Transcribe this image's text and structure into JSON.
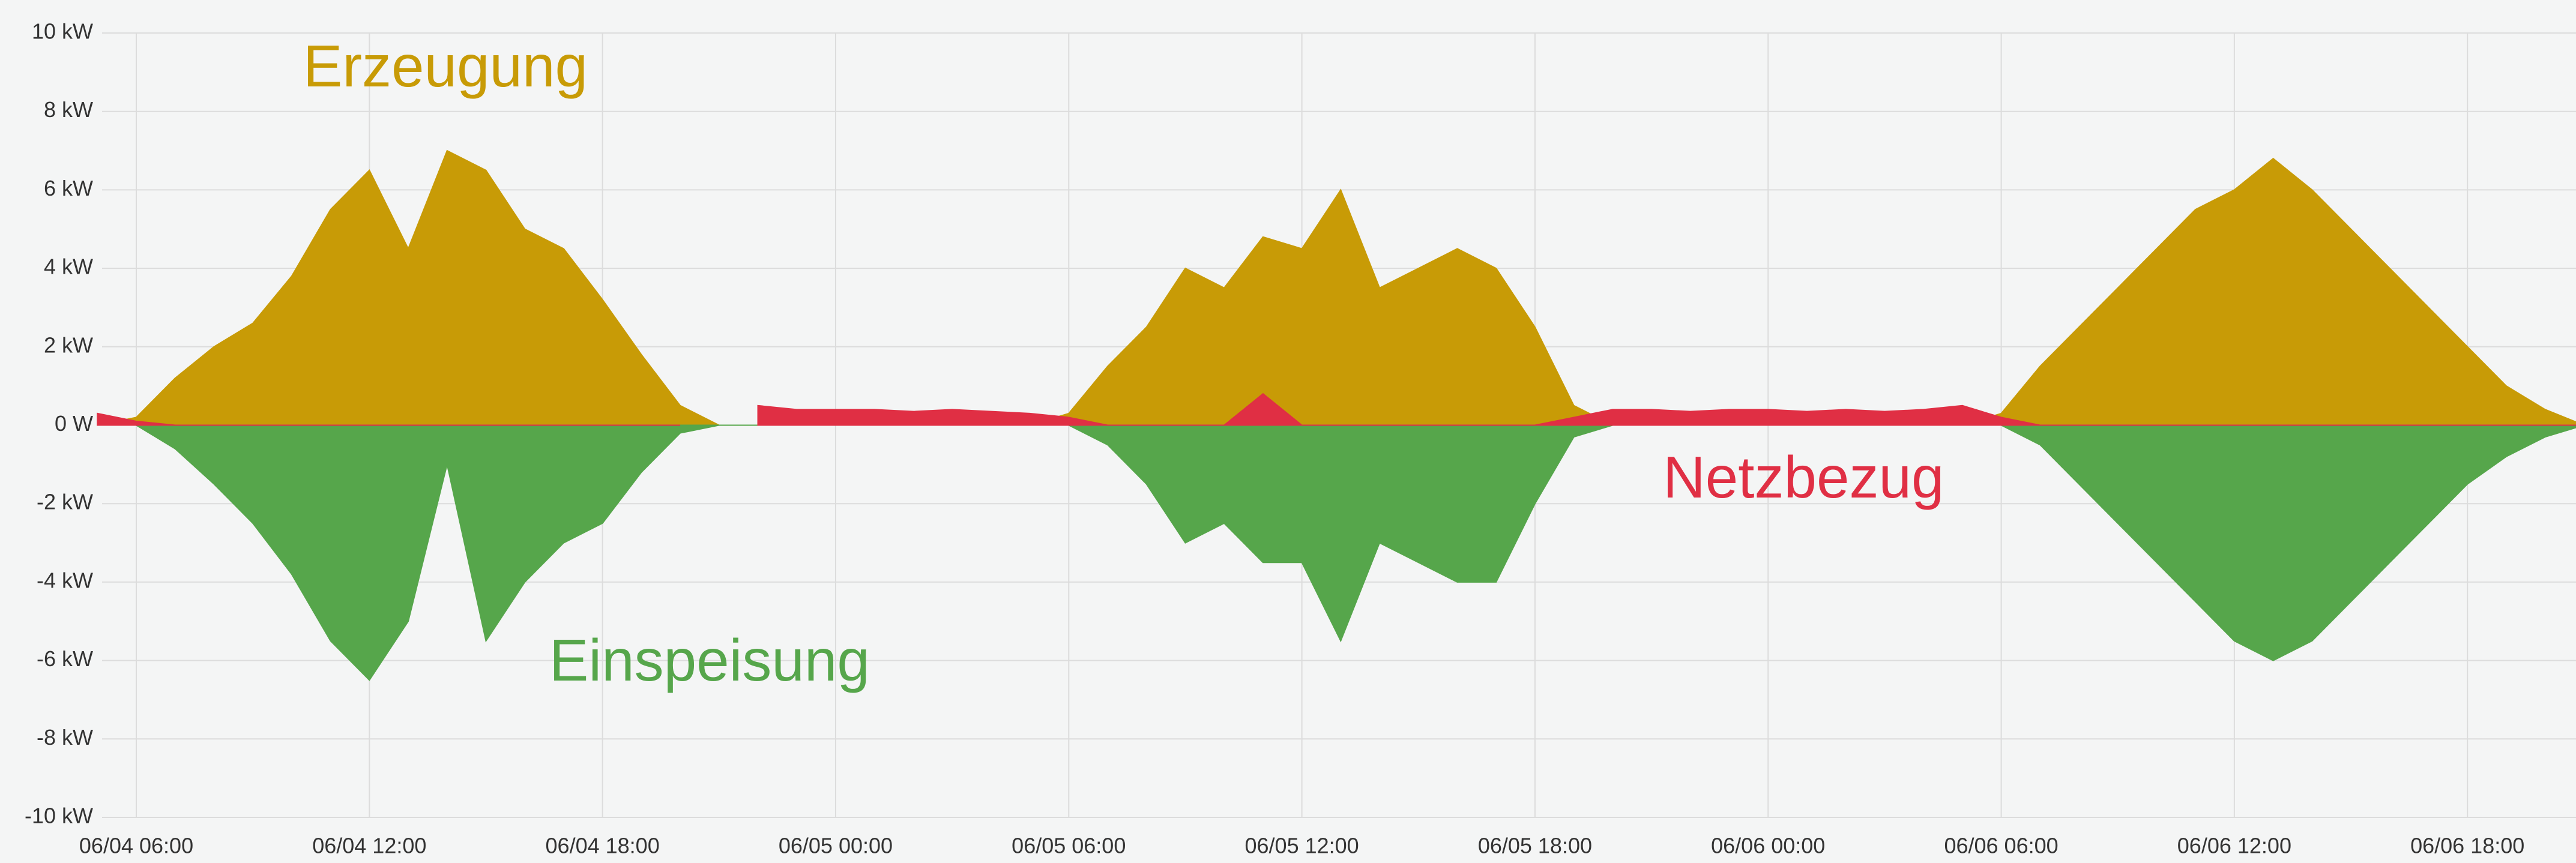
{
  "chart_data": {
    "type": "area",
    "x": [
      "06/04 05:00",
      "06/04 06:00",
      "06/04 07:00",
      "06/04 08:00",
      "06/04 09:00",
      "06/04 10:00",
      "06/04 11:00",
      "06/04 12:00",
      "06/04 13:00",
      "06/04 14:00",
      "06/04 15:00",
      "06/04 16:00",
      "06/04 17:00",
      "06/04 18:00",
      "06/04 19:00",
      "06/04 20:00",
      "06/04 21:00",
      "06/04 22:00",
      "06/04 23:00",
      "06/05 00:00",
      "06/05 01:00",
      "06/05 02:00",
      "06/05 03:00",
      "06/05 04:00",
      "06/05 05:00",
      "06/05 06:00",
      "06/05 07:00",
      "06/05 08:00",
      "06/05 09:00",
      "06/05 10:00",
      "06/05 11:00",
      "06/05 12:00",
      "06/05 13:00",
      "06/05 14:00",
      "06/05 15:00",
      "06/05 16:00",
      "06/05 17:00",
      "06/05 18:00",
      "06/05 19:00",
      "06/05 20:00",
      "06/05 21:00",
      "06/05 22:00",
      "06/05 23:00",
      "06/06 00:00",
      "06/06 01:00",
      "06/06 02:00",
      "06/06 03:00",
      "06/06 04:00",
      "06/06 05:00",
      "06/06 06:00",
      "06/06 07:00",
      "06/06 08:00",
      "06/06 09:00",
      "06/06 10:00",
      "06/06 11:00",
      "06/06 12:00",
      "06/06 13:00",
      "06/06 14:00",
      "06/06 15:00",
      "06/06 16:00",
      "06/06 17:00",
      "06/06 18:00",
      "06/06 19:00",
      "06/06 20:00",
      "06/06 21:00"
    ],
    "series": [
      {
        "name": "Erzeugung",
        "color": "#c89b06",
        "values": [
          0,
          0.2,
          1.2,
          2.0,
          2.6,
          3.8,
          5.5,
          6.5,
          4.5,
          7.0,
          6.5,
          5.0,
          4.5,
          3.2,
          1.8,
          0.5,
          0,
          0,
          0,
          0,
          0,
          0,
          0,
          0,
          0,
          0.3,
          1.5,
          2.5,
          4.0,
          3.5,
          4.8,
          4.5,
          6.0,
          3.5,
          4.0,
          4.5,
          4.0,
          2.5,
          0.5,
          0,
          0,
          0,
          0,
          0,
          0,
          0,
          0,
          0,
          0,
          0.3,
          1.5,
          2.5,
          3.5,
          4.5,
          5.5,
          6.0,
          6.8,
          6.0,
          5.0,
          4.0,
          3.0,
          2.0,
          1.0,
          0.4,
          0
        ]
      },
      {
        "name": "Einspeisung",
        "color": "#56a64b",
        "values": [
          0,
          0,
          -0.6,
          -1.5,
          -2.5,
          -3.8,
          -5.5,
          -6.5,
          -5,
          -1,
          -5.5,
          -4,
          -3,
          -2.5,
          -1.2,
          -0.2,
          0,
          0,
          0,
          0,
          0,
          0,
          0,
          0,
          0,
          0,
          -0.5,
          -1.5,
          -3.0,
          -2.5,
          -3.5,
          -3.5,
          -5.5,
          -3.0,
          -3.5,
          -4.0,
          -4.0,
          -2.0,
          -0.3,
          0,
          0,
          0,
          0,
          0,
          0,
          0,
          0,
          0,
          0,
          0,
          -0.5,
          -1.5,
          -2.5,
          -3.5,
          -4.5,
          -5.5,
          -6.0,
          -5.5,
          -4.5,
          -3.5,
          -2.5,
          -1.5,
          -0.8,
          -0.3,
          0
        ]
      },
      {
        "name": "Netzbezug",
        "color": "#e02f44",
        "values": [
          0.3,
          0.1,
          0,
          0,
          0,
          0,
          0,
          0,
          0,
          0,
          0,
          0,
          0,
          0,
          0,
          0,
          null,
          0.5,
          0.4,
          0.4,
          0.4,
          0.35,
          0.4,
          0.35,
          0.3,
          0.2,
          0,
          0,
          0,
          0,
          0.8,
          0,
          0,
          0,
          0,
          0,
          0,
          0,
          0.2,
          0.4,
          0.4,
          0.35,
          0.4,
          0.4,
          0.35,
          0.4,
          0.35,
          0.4,
          0.5,
          0.2,
          0,
          0,
          0,
          0,
          0,
          0,
          0,
          0,
          0,
          0,
          0,
          0,
          0,
          0,
          0
        ]
      }
    ],
    "xticks": [
      "06/04 06:00",
      "06/04 12:00",
      "06/04 18:00",
      "06/05 00:00",
      "06/05 06:00",
      "06/05 12:00",
      "06/05 18:00",
      "06/06 00:00",
      "06/06 06:00",
      "06/06 12:00",
      "06/06 18:00"
    ],
    "ylim": [
      -10,
      10
    ],
    "yticks": [
      {
        "value": -10,
        "label": "-10 kW"
      },
      {
        "value": -8,
        "label": "-8 kW"
      },
      {
        "value": -6,
        "label": "-6 kW"
      },
      {
        "value": -4,
        "label": "-4 kW"
      },
      {
        "value": -2,
        "label": "-2 kW"
      },
      {
        "value": 0,
        "label": "0 W"
      },
      {
        "value": 2,
        "label": "2 kW"
      },
      {
        "value": 4,
        "label": "4 kW"
      },
      {
        "value": 6,
        "label": "6 kW"
      },
      {
        "value": 8,
        "label": "8 kW"
      },
      {
        "value": 10,
        "label": "10 kW"
      }
    ],
    "grid": true
  }
}
